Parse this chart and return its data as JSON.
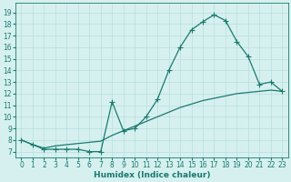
{
  "xlabel": "Humidex (Indice chaleur)",
  "bg_color": "#d6f0f0",
  "grid_color": "#b8dede",
  "line_color": "#1a7a6e",
  "ylim": [
    6.5,
    19.8
  ],
  "xlim": [
    -0.5,
    23.5
  ],
  "yticks": [
    7,
    8,
    9,
    10,
    11,
    12,
    13,
    14,
    15,
    16,
    17,
    18,
    19
  ],
  "xticks": [
    0,
    1,
    2,
    3,
    4,
    5,
    6,
    7,
    8,
    9,
    10,
    11,
    12,
    13,
    14,
    15,
    16,
    17,
    18,
    19,
    20,
    21,
    22,
    23
  ],
  "curve1_x": [
    0,
    1,
    2,
    3,
    4,
    5,
    6,
    7,
    8,
    9,
    10,
    11,
    12,
    13,
    14,
    15,
    16,
    17,
    18,
    19,
    20,
    21,
    22,
    23
  ],
  "curve1_y": [
    8.0,
    7.6,
    7.2,
    7.2,
    7.2,
    7.2,
    7.0,
    7.0,
    11.3,
    8.8,
    9.0,
    10.0,
    11.5,
    14.0,
    16.0,
    17.5,
    18.2,
    18.8,
    18.3,
    16.5,
    15.2,
    12.8,
    13.0,
    12.2
  ],
  "curve2_x": [
    0,
    1,
    2,
    3,
    4,
    5,
    6,
    7,
    8,
    9,
    10,
    11,
    12,
    13,
    14,
    15,
    16,
    17,
    18,
    19,
    20,
    21,
    22,
    23
  ],
  "curve2_y": [
    8.0,
    7.6,
    7.3,
    7.5,
    7.6,
    7.7,
    7.8,
    7.9,
    8.4,
    8.8,
    9.2,
    9.6,
    10.0,
    10.4,
    10.8,
    11.1,
    11.4,
    11.6,
    11.8,
    12.0,
    12.1,
    12.2,
    12.3,
    12.2
  ],
  "marker": "P",
  "markersize": 3,
  "linewidth": 0.9,
  "tick_fontsize": 5.5,
  "xlabel_fontsize": 6.5
}
